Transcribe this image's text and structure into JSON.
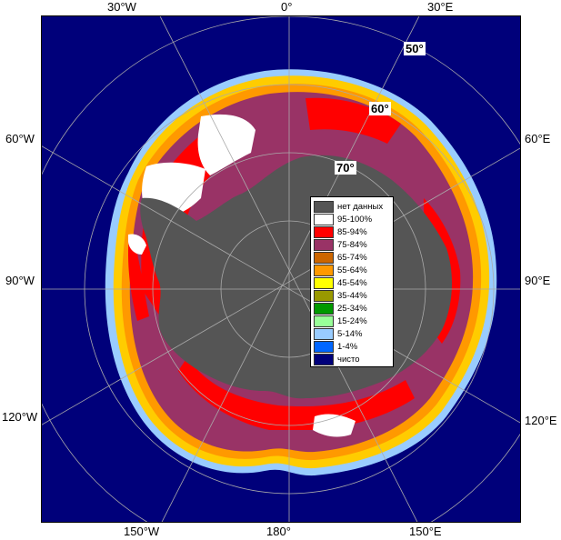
{
  "map": {
    "lon_labels": {
      "w30": "30°W",
      "zero": "0°",
      "e30": "30°E",
      "w60": "60°W",
      "e60": "60°E",
      "w90": "90°W",
      "e90": "90°E",
      "w120": "120°W",
      "e120": "120°E",
      "w150": "150°W",
      "s180": "180°",
      "e150": "150°E"
    },
    "lat_labels": {
      "lat50": "50°",
      "lat60": "60°",
      "lat70": "70°"
    },
    "colors": {
      "open_water": "#00007a",
      "land": "#555555",
      "ice_95_100": "#ffffff",
      "ice_85_94": "#ff0000",
      "ice_75_84": "#993366",
      "ice_65_74": "#cc6600",
      "ice_55_64": "#ff9900",
      "ice_45_54": "#ffff00",
      "ice_35_44": "#999900",
      "ice_25_34": "#009900",
      "ice_15_24": "#99ff99",
      "ice_5_14": "#99ccff",
      "ice_1_4": "#0066ff"
    }
  },
  "legend": {
    "items": [
      {
        "label": "нет данных",
        "color": "#555555"
      },
      {
        "label": "95-100%",
        "color": "#ffffff"
      },
      {
        "label": "85-94%",
        "color": "#ff0000"
      },
      {
        "label": "75-84%",
        "color": "#993366"
      },
      {
        "label": "65-74%",
        "color": "#cc6600"
      },
      {
        "label": "55-64%",
        "color": "#ff9900"
      },
      {
        "label": "45-54%",
        "color": "#ffff00"
      },
      {
        "label": "35-44%",
        "color": "#999900"
      },
      {
        "label": "25-34%",
        "color": "#009900"
      },
      {
        "label": "15-24%",
        "color": "#99ff99"
      },
      {
        "label": "5-14%",
        "color": "#99ccff"
      },
      {
        "label": "1-4%",
        "color": "#0066ff"
      },
      {
        "label": "чисто",
        "color": "#00007a"
      }
    ]
  }
}
